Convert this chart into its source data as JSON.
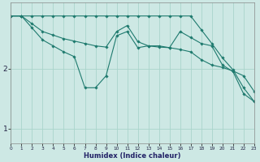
{
  "xlabel": "Humidex (Indice chaleur)",
  "bg_color": "#cde8e4",
  "line_color": "#1e7a6e",
  "grid_color_major": "#aad4cc",
  "grid_color_minor": "#c4e4df",
  "x_min": 0,
  "x_max": 23,
  "y_min": 0.75,
  "y_max": 3.1,
  "yticks": [
    1,
    2
  ],
  "series": [
    {
      "x": [
        0,
        1,
        2,
        3,
        4,
        5,
        6,
        7,
        8,
        9,
        10,
        11,
        12,
        13,
        14,
        15,
        16,
        17,
        18,
        19,
        20,
        21,
        22,
        23
      ],
      "y": [
        2.88,
        2.88,
        2.88,
        2.88,
        2.88,
        2.88,
        2.88,
        2.88,
        2.88,
        2.88,
        2.88,
        2.88,
        2.88,
        2.88,
        2.88,
        2.88,
        2.88,
        2.88,
        2.65,
        2.42,
        2.18,
        1.98,
        1.68,
        1.45
      ]
    },
    {
      "x": [
        0,
        1,
        2,
        3,
        4,
        5,
        6,
        7,
        8,
        9,
        10,
        11,
        12,
        13,
        14,
        15,
        16,
        17,
        18,
        19,
        20,
        21,
        22,
        23
      ],
      "y": [
        2.88,
        2.88,
        2.75,
        2.62,
        2.56,
        2.5,
        2.46,
        2.42,
        2.38,
        2.36,
        2.62,
        2.72,
        2.45,
        2.38,
        2.36,
        2.35,
        2.32,
        2.28,
        2.15,
        2.06,
        2.02,
        1.96,
        1.88,
        1.62
      ]
    },
    {
      "x": [
        0,
        1,
        2,
        3,
        4,
        5,
        6,
        7,
        8,
        9,
        10,
        11,
        12,
        13,
        14,
        15,
        16,
        17,
        18,
        19,
        20,
        21,
        22,
        23
      ],
      "y": [
        2.88,
        2.88,
        2.68,
        2.48,
        2.38,
        2.28,
        2.2,
        1.68,
        1.68,
        1.88,
        2.55,
        2.62,
        2.35,
        2.38,
        2.38,
        2.35,
        2.62,
        2.52,
        2.42,
        2.38,
        2.06,
        1.95,
        1.58,
        1.45
      ]
    }
  ]
}
